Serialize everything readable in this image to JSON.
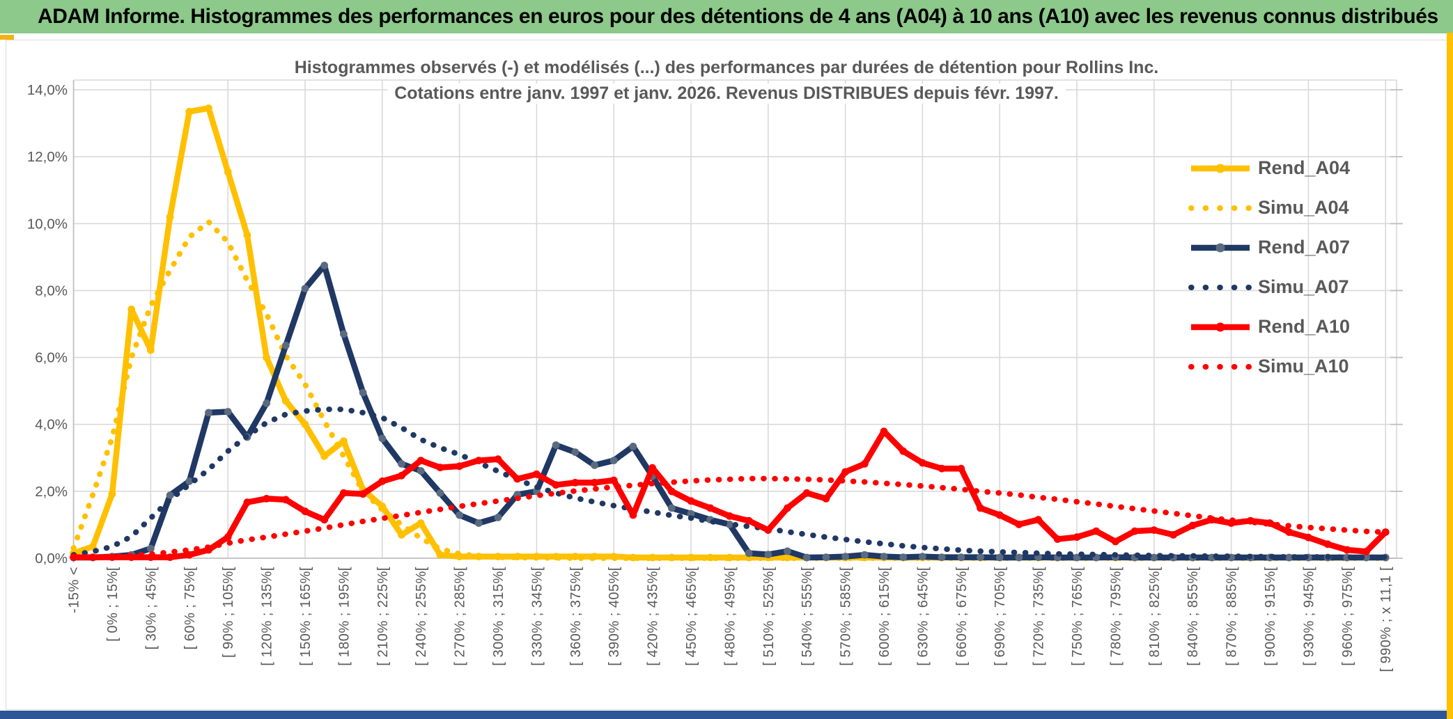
{
  "header": {
    "title": "ADAM Informe. Histogrammes des performances en euros pour des détentions de 4 ans (A04) à 10 ans (A10) avec les revenus connus distribués"
  },
  "chart_data": {
    "type": "line",
    "title_line1": "Histogrammes observés (-) et modélisés (...) des performances par durées de détention pour Rollins Inc.",
    "title_line2": "Cotations entre janv. 1997 et janv. 2026. Revenus DISTRIBUES depuis févr. 1997.",
    "ylim": [
      0,
      14
    ],
    "grid": true,
    "legend_position": "right",
    "ytick_labels": [
      "0,0%",
      "2,0%",
      "4,0%",
      "6,0%",
      "8,0%",
      "10,0%",
      "12,0%",
      "14,0%"
    ],
    "categories": [
      "-15% <",
      "[ 0% ; 15%[",
      "[ 30% ; 45%[",
      "[ 60% ; 75%[",
      "[ 90% ; 105%[",
      "[ 120% ; 135%[",
      "[ 150% ; 165%[",
      "[ 180% ; 195%[",
      "[ 210% ; 225%[",
      "[ 240% ; 255%[",
      "[ 270% ; 285%[",
      "[ 300% ; 315%[",
      "[ 330% ; 345%[",
      "[ 360% ; 375%[",
      "[ 390% ; 405%[",
      "[ 420% ; 435%[",
      "[ 450% ; 465%[",
      "[ 480% ; 495%[",
      "[ 510% ; 525%[",
      "[ 540% ; 555%[",
      "[ 570% ; 585%[",
      "[ 600% ; 615%[",
      "[ 630% ; 645%[",
      "[ 660% ; 675%[",
      "[ 690% ; 705%[",
      "[ 720% ; 735%[",
      "[ 750% ; 765%[",
      "[ 780% ; 795%[",
      "[ 810% ; 825%[",
      "[ 840% ; 855%[",
      "[ 870% ; 885%[",
      "[ 900% ; 915%[",
      "[ 930% ; 945%[",
      "[ 960% ; 975%[",
      "[ 990% ; x 11,1 ["
    ],
    "points_per_category": 2,
    "series": [
      {
        "name": "Rend_A04",
        "style": "solid",
        "color": "#FFC000",
        "marker_color": "#FFC000",
        "values": [
          0.15,
          0.35,
          1.92,
          7.44,
          6.22,
          10.2,
          13.35,
          13.45,
          11.55,
          9.66,
          6.0,
          4.7,
          4.0,
          3.05,
          3.5,
          2.05,
          1.55,
          0.7,
          1.05,
          0.1,
          0.05,
          0.05,
          0.05,
          0.05,
          0.05,
          0.05,
          0.05,
          0.05,
          0.05,
          0.02,
          0.02,
          0.02,
          0.02,
          0.02,
          0.02,
          0.02,
          0.02,
          0.02,
          0.02,
          0.02,
          0.02,
          0.02,
          0.02,
          0.02,
          0.02,
          0.02,
          0.02,
          0.02,
          0.02,
          0.02,
          0.02,
          0.02,
          0.02,
          0.02,
          0.02,
          0.02,
          0.02,
          0.02,
          0.02,
          0.02,
          0.02,
          0.02,
          0.02,
          0.02,
          0.02,
          0.02,
          0.02,
          0.02,
          0.02
        ]
      },
      {
        "name": "Simu_A04",
        "style": "dotted",
        "color": "#FFC000",
        "marker_color": "#FFC000",
        "values": [
          0.3,
          1.9,
          3.6,
          6.0,
          7.55,
          8.6,
          9.6,
          10.05,
          9.45,
          8.3,
          7.3,
          6.05,
          5.2,
          4.1,
          3.05,
          2.0,
          1.45,
          1.0,
          0.6,
          0.28,
          0.13,
          0.06,
          0.03,
          0.02,
          0.01,
          0.01,
          0,
          0,
          0,
          0,
          0,
          0,
          0,
          0,
          0,
          0,
          0,
          0,
          0,
          0,
          0,
          0,
          0,
          0,
          0,
          0,
          0,
          0,
          0,
          0,
          0,
          0,
          0,
          0,
          0,
          0,
          0,
          0,
          0,
          0,
          0,
          0,
          0,
          0,
          0,
          0,
          0,
          0,
          0
        ]
      },
      {
        "name": "Rend_A07",
        "style": "solid",
        "color": "#1F3864",
        "marker_color": "#5B6B7F",
        "values": [
          0.02,
          0.02,
          0.05,
          0.1,
          0.29,
          1.88,
          2.3,
          4.35,
          4.38,
          3.62,
          4.63,
          6.36,
          8.06,
          8.75,
          6.7,
          4.95,
          3.58,
          2.82,
          2.61,
          1.95,
          1.29,
          1.05,
          1.22,
          1.9,
          2.0,
          3.38,
          3.17,
          2.78,
          2.92,
          3.34,
          2.45,
          1.5,
          1.33,
          1.15,
          1.01,
          0.15,
          0.11,
          0.21,
          0.02,
          0.03,
          0.05,
          0.1,
          0.05,
          0.03,
          0.05,
          0.03,
          0.03,
          0.03,
          0.02,
          0.02,
          0.03,
          0.02,
          0.02,
          0.02,
          0.03,
          0.02,
          0.02,
          0.02,
          0.02,
          0.02,
          0.02,
          0.02,
          0.02,
          0.02,
          0.02,
          0.02,
          0.02,
          0.02,
          0.02
        ]
      },
      {
        "name": "Simu_A07",
        "style": "dotted",
        "color": "#1F3864",
        "marker_color": "#1F3864",
        "values": [
          0.1,
          0.2,
          0.35,
          0.65,
          1.2,
          1.75,
          2.2,
          2.65,
          3.2,
          3.65,
          4.05,
          4.3,
          4.4,
          4.45,
          4.45,
          4.35,
          4.2,
          3.9,
          3.55,
          3.3,
          3.1,
          2.85,
          2.6,
          2.35,
          2.13,
          1.95,
          1.8,
          1.68,
          1.57,
          1.47,
          1.38,
          1.28,
          1.2,
          1.1,
          1.02,
          0.95,
          0.88,
          0.79,
          0.71,
          0.63,
          0.56,
          0.49,
          0.43,
          0.37,
          0.32,
          0.28,
          0.24,
          0.21,
          0.19,
          0.17,
          0.15,
          0.13,
          0.12,
          0.11,
          0.1,
          0.09,
          0.08,
          0.07,
          0.07,
          0.06,
          0.06,
          0.05,
          0.05,
          0.04,
          0.04,
          0.04,
          0.03,
          0.03,
          0.03
        ]
      },
      {
        "name": "Rend_A10",
        "style": "solid",
        "color": "#FF0000",
        "marker_color": "#FF0000",
        "values": [
          0.03,
          0.03,
          0.03,
          0.03,
          0.03,
          0.03,
          0.1,
          0.25,
          0.63,
          1.67,
          1.78,
          1.75,
          1.4,
          1.15,
          1.95,
          1.92,
          2.3,
          2.47,
          2.92,
          2.71,
          2.75,
          2.92,
          2.96,
          2.37,
          2.51,
          2.19,
          2.26,
          2.26,
          2.33,
          1.29,
          2.7,
          2.0,
          1.71,
          1.5,
          1.26,
          1.12,
          0.84,
          1.5,
          1.95,
          1.78,
          2.58,
          2.82,
          3.79,
          3.2,
          2.85,
          2.68,
          2.68,
          1.5,
          1.29,
          1.01,
          1.15,
          0.57,
          0.63,
          0.81,
          0.5,
          0.81,
          0.84,
          0.7,
          0.98,
          1.15,
          1.05,
          1.12,
          1.05,
          0.78,
          0.62,
          0.42,
          0.25,
          0.2,
          0.78
        ]
      },
      {
        "name": "Simu_A10",
        "style": "dotted",
        "color": "#FF0000",
        "marker_color": "#FF0000",
        "values": [
          0.02,
          0.03,
          0.05,
          0.08,
          0.12,
          0.18,
          0.25,
          0.33,
          0.45,
          0.55,
          0.63,
          0.72,
          0.81,
          0.9,
          1.0,
          1.1,
          1.19,
          1.28,
          1.37,
          1.46,
          1.55,
          1.63,
          1.71,
          1.79,
          1.87,
          1.94,
          2.01,
          2.07,
          2.13,
          2.18,
          2.23,
          2.27,
          2.31,
          2.34,
          2.36,
          2.38,
          2.38,
          2.37,
          2.36,
          2.34,
          2.31,
          2.28,
          2.24,
          2.2,
          2.16,
          2.11,
          2.06,
          2.0,
          1.95,
          1.89,
          1.82,
          1.76,
          1.69,
          1.62,
          1.55,
          1.48,
          1.41,
          1.34,
          1.27,
          1.2,
          1.14,
          1.08,
          1.02,
          0.97,
          0.92,
          0.88,
          0.84,
          0.8,
          0.78
        ]
      }
    ]
  },
  "colors": {
    "header_bg": "#8CC98A",
    "accent_gold": "#FFC000",
    "accent_navy_bar": "#2E5596",
    "gridline": "#D9D9D9",
    "axis_line": "#BFBFBF",
    "text_grey": "#595959"
  }
}
